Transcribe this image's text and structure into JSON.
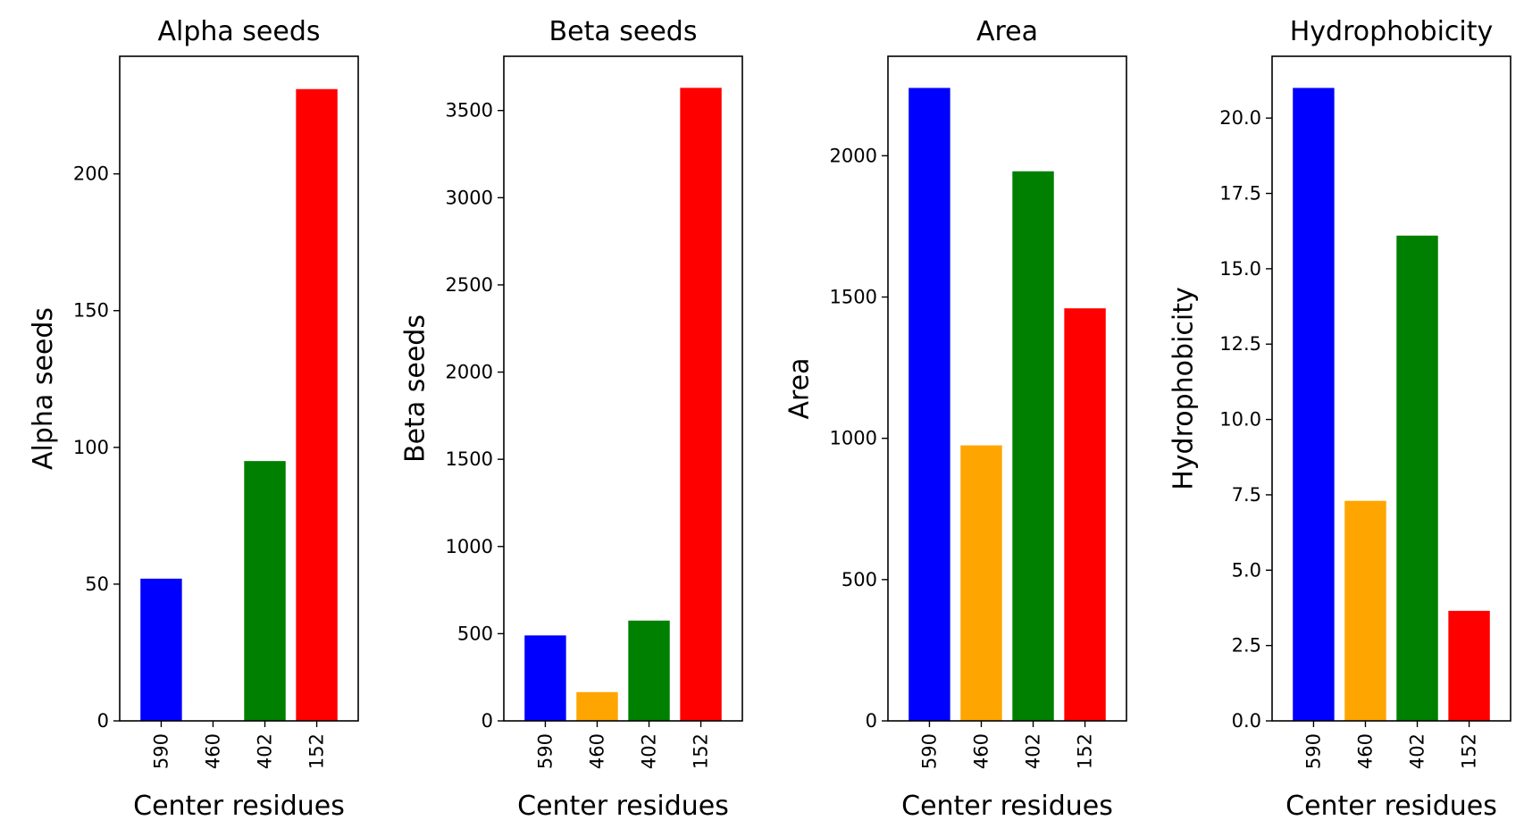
{
  "chart_data": [
    {
      "type": "bar",
      "title": "Alpha seeds",
      "xlabel": "Center residues",
      "ylabel": "Alpha seeds",
      "categories": [
        "590",
        "460",
        "402",
        "152"
      ],
      "values": [
        52,
        0,
        95,
        231
      ],
      "colors": [
        "#0000ff",
        "#ffa500",
        "#008000",
        "#ff0000"
      ],
      "ylim": [
        0,
        243
      ],
      "yticks": [
        0,
        50,
        100,
        150,
        200
      ],
      "ytick_labels": [
        "0",
        "50",
        "100",
        "150",
        "200"
      ],
      "grid": false,
      "legend": "none"
    },
    {
      "type": "bar",
      "title": "Beta seeds",
      "xlabel": "Center residues",
      "ylabel": "Beta seeds",
      "categories": [
        "590",
        "460",
        "402",
        "152"
      ],
      "values": [
        490,
        165,
        575,
        3630
      ],
      "colors": [
        "#0000ff",
        "#ffa500",
        "#008000",
        "#ff0000"
      ],
      "ylim": [
        0,
        3811
      ],
      "yticks": [
        0,
        500,
        1000,
        1500,
        2000,
        2500,
        3000,
        3500
      ],
      "ytick_labels": [
        "0",
        "500",
        "1000",
        "1500",
        "2000",
        "2500",
        "3000",
        "3500"
      ],
      "grid": false,
      "legend": "none"
    },
    {
      "type": "bar",
      "title": "Area",
      "xlabel": "Center residues",
      "ylabel": "Area",
      "categories": [
        "590",
        "460",
        "402",
        "152"
      ],
      "values": [
        2240,
        975,
        1945,
        1460
      ],
      "colors": [
        "#0000ff",
        "#ffa500",
        "#008000",
        "#ff0000"
      ],
      "ylim": [
        0,
        2352
      ],
      "yticks": [
        0,
        500,
        1000,
        1500,
        2000
      ],
      "ytick_labels": [
        "0",
        "500",
        "1000",
        "1500",
        "2000"
      ],
      "grid": false,
      "legend": "none"
    },
    {
      "type": "bar",
      "title": "Hydrophobicity",
      "xlabel": "Center residues",
      "ylabel": "Hydrophobicity",
      "categories": [
        "590",
        "460",
        "402",
        "152"
      ],
      "values": [
        21.0,
        7.3,
        16.1,
        3.65
      ],
      "colors": [
        "#0000ff",
        "#ffa500",
        "#008000",
        "#ff0000"
      ],
      "ylim": [
        0,
        22.05
      ],
      "yticks": [
        0,
        2.5,
        5,
        7.5,
        10,
        12.5,
        15,
        17.5,
        20
      ],
      "ytick_labels": [
        "0.0",
        "2.5",
        "5.0",
        "7.5",
        "10.0",
        "12.5",
        "15.0",
        "17.5",
        "20.0"
      ],
      "grid": false,
      "legend": "none"
    }
  ]
}
